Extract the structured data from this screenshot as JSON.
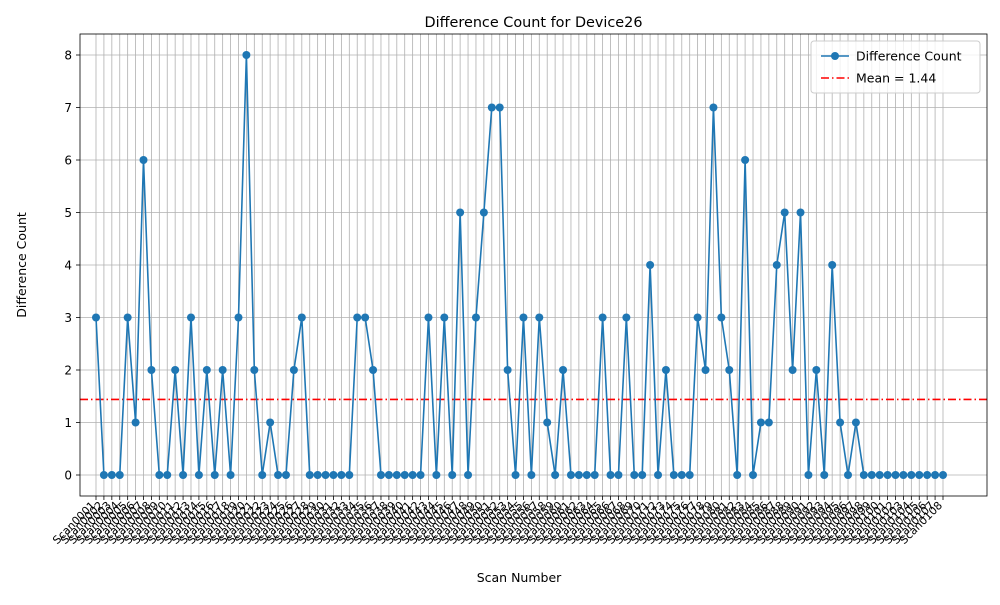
{
  "chart_data": {
    "type": "line",
    "title": "Difference Count for Device26",
    "xlabel": "Scan Number",
    "ylabel": "Difference Count",
    "ylim": [
      -0.4,
      8.4
    ],
    "yticks": [
      0,
      1,
      2,
      3,
      4,
      5,
      6,
      7,
      8
    ],
    "grid": true,
    "legend_position": "top-right",
    "mean": 1.44,
    "categories": [
      "Scan0001",
      "Scan0002",
      "Scan0003",
      "Scan0004",
      "Scan0005",
      "Scan0006",
      "Scan0007",
      "Scan0008",
      "Scan0009",
      "Scan0010",
      "Scan0011",
      "Scan0012",
      "Scan0013",
      "Scan0014",
      "Scan0015",
      "Scan0016",
      "Scan0017",
      "Scan0018",
      "Scan0019",
      "Scan0020",
      "Scan0021",
      "Scan0022",
      "Scan0023",
      "Scan0024",
      "Scan0025",
      "Scan0026",
      "Scan0027",
      "Scan0028",
      "Scan0029",
      "Scan0030",
      "Scan0031",
      "Scan0032",
      "Scan0033",
      "Scan0034",
      "Scan0035",
      "Scan0036",
      "Scan0037",
      "Scan0038",
      "Scan0039",
      "Scan0040",
      "Scan0041",
      "Scan0042",
      "Scan0043",
      "Scan0044",
      "Scan0045",
      "Scan0046",
      "Scan0047",
      "Scan0048",
      "Scan0049",
      "Scan0050",
      "Scan0051",
      "Scan0052",
      "Scan0053",
      "Scan0054",
      "Scan0055",
      "Scan0056",
      "Scan0057",
      "Scan0058",
      "Scan0059",
      "Scan0060",
      "Scan0061",
      "Scan0062",
      "Scan0063",
      "Scan0064",
      "Scan0065",
      "Scan0066",
      "Scan0067",
      "Scan0068",
      "Scan0069",
      "Scan0070",
      "Scan0071",
      "Scan0072",
      "Scan0073",
      "Scan0074",
      "Scan0075",
      "Scan0076",
      "Scan0077",
      "Scan0078",
      "Scan0079",
      "Scan0080",
      "Scan0081",
      "Scan0082",
      "Scan0083",
      "Scan0084",
      "Scan0085",
      "Scan0086",
      "Scan0087",
      "Scan0088",
      "Scan0089",
      "Scan0090",
      "Scan0091",
      "Scan0092",
      "Scan0093",
      "Scan0094",
      "Scan0095",
      "Scan0096",
      "Scan0097",
      "Scan0098",
      "Scan0099",
      "Scan0100",
      "Scan0101",
      "Scan0102",
      "Scan0103",
      "Scan0104",
      "Scan0105",
      "Scan0106",
      "Scan0107",
      "Scan0108"
    ],
    "series": [
      {
        "name": "Difference Count",
        "color": "#1f77b4",
        "values": [
          3,
          0,
          0,
          0,
          3,
          1,
          6,
          2,
          0,
          0,
          2,
          0,
          3,
          0,
          2,
          0,
          2,
          0,
          3,
          8,
          2,
          0,
          1,
          0,
          0,
          2,
          3,
          0,
          0,
          0,
          0,
          0,
          0,
          3,
          3,
          2,
          0,
          0,
          0,
          0,
          0,
          0,
          3,
          0,
          3,
          0,
          5,
          0,
          3,
          5,
          7,
          7,
          2,
          0,
          3,
          0,
          3,
          1,
          0,
          2,
          0,
          0,
          0,
          0,
          3,
          0,
          0,
          3,
          0,
          0,
          4,
          0,
          2,
          0,
          0,
          0,
          3,
          2,
          7,
          3,
          2,
          0,
          6,
          0,
          1,
          1,
          4,
          5,
          2,
          5,
          0,
          2,
          0,
          4,
          1,
          0,
          1,
          0,
          0,
          0,
          0,
          0,
          0,
          0,
          0,
          0,
          0,
          0
        ]
      }
    ],
    "mean_line": {
      "label": "Mean = 1.44",
      "value": 1.44,
      "color": "#ff0000"
    }
  }
}
